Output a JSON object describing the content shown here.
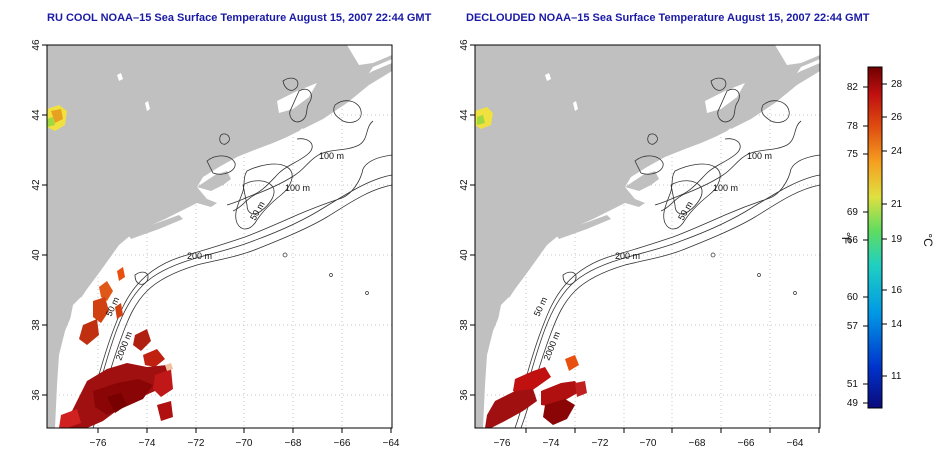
{
  "panels": [
    {
      "title": "RU COOL NOAA–15 Sea Surface Temperature August 15, 2007 22:44 GMT",
      "contour_labels": [
        "100 m",
        "100 m",
        "50 m",
        "200 m",
        "50 m",
        "2000 m"
      ]
    },
    {
      "title": "DECLOUDED NOAA–15 Sea Surface Temperature August 15, 2007 22:44 GMT",
      "contour_labels": [
        "100 m",
        "100 m",
        "50 m",
        "200 m",
        "50 m",
        "2000 m"
      ]
    }
  ],
  "axes": {
    "x_ticks": [
      "−76",
      "−74",
      "−72",
      "−70",
      "−68",
      "−66",
      "−64"
    ],
    "y_ticks": [
      "46",
      "44",
      "42",
      "40",
      "38",
      "36"
    ]
  },
  "colorbar": {
    "f_label": "°F",
    "c_label": "°C",
    "f_ticks": [
      "82",
      "78",
      "75",
      "69",
      "66",
      "60",
      "57",
      "51",
      "49"
    ],
    "c_ticks": [
      "28",
      "26",
      "24",
      "21",
      "19",
      "16",
      "14",
      "11"
    ]
  },
  "colors": {
    "land": "#c0c0c0",
    "ocean": "#ffffff",
    "title": "#1a1aa6",
    "scale": [
      "#0a0a7a",
      "#0044d6",
      "#00a0e6",
      "#20d0c0",
      "#70e070",
      "#e8e83a",
      "#f5b020",
      "#e85010",
      "#c01010",
      "#780000"
    ]
  }
}
